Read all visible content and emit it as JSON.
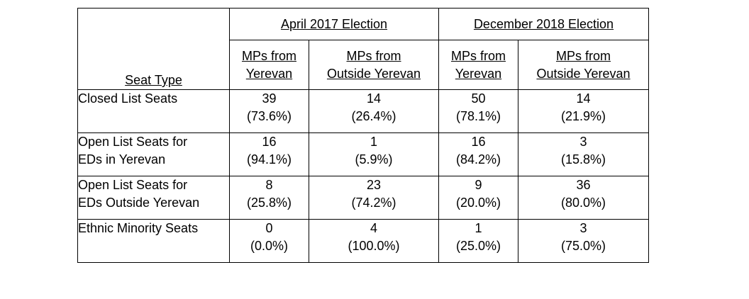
{
  "header": {
    "seat_type": "Seat Type",
    "groups": [
      "April 2017 Election",
      "December 2018 Election"
    ],
    "subheads": [
      {
        "line1": "MPs from",
        "line2": "Yerevan"
      },
      {
        "line1": "MPs from",
        "line2": "Outside Yerevan"
      },
      {
        "line1": "MPs from",
        "line2": "Yerevan"
      },
      {
        "line1": "MPs from",
        "line2": "Outside Yerevan"
      }
    ]
  },
  "rows": [
    {
      "label": [
        "Closed List Seats"
      ],
      "cells": [
        {
          "count": "39",
          "pct": "(73.6%)"
        },
        {
          "count": "14",
          "pct": "(26.4%)"
        },
        {
          "count": "50",
          "pct": "(78.1%)"
        },
        {
          "count": "14",
          "pct": "(21.9%)"
        }
      ]
    },
    {
      "label": [
        "Open List Seats for",
        "EDs in Yerevan"
      ],
      "cells": [
        {
          "count": "16",
          "pct": "(94.1%)"
        },
        {
          "count": "1",
          "pct": "(5.9%)"
        },
        {
          "count": "16",
          "pct": "(84.2%)"
        },
        {
          "count": "3",
          "pct": "(15.8%)"
        }
      ]
    },
    {
      "label": [
        "Open List Seats for",
        "EDs Outside Yerevan"
      ],
      "cells": [
        {
          "count": "8",
          "pct": "(25.8%)"
        },
        {
          "count": "23",
          "pct": "(74.2%)"
        },
        {
          "count": "9",
          "pct": "(20.0%)"
        },
        {
          "count": "36",
          "pct": "(80.0%)"
        }
      ]
    },
    {
      "label": [
        "Ethnic Minority Seats"
      ],
      "cells": [
        {
          "count": "0",
          "pct": "(0.0%)"
        },
        {
          "count": "4",
          "pct": "(100.0%)"
        },
        {
          "count": "1",
          "pct": "(25.0%)"
        },
        {
          "count": "3",
          "pct": "(75.0%)"
        }
      ]
    }
  ]
}
